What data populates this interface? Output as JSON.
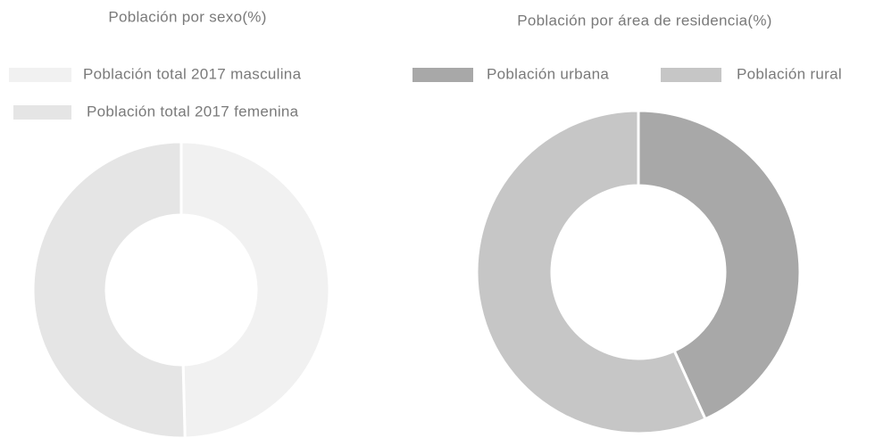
{
  "chart_data": [
    {
      "type": "donut",
      "title": "Población por sexo(%)",
      "categories": [
        "Población total 2017 masculina",
        "Población total 2017 femenina"
      ],
      "values": [
        49.6,
        50.4
      ],
      "colors": [
        "#f1f1f1",
        "#e5e5e5"
      ]
    },
    {
      "type": "donut",
      "title": "Población por área de residencia(%)",
      "categories": [
        "Población urbana",
        "Población rural"
      ],
      "values": [
        43.2,
        56.8
      ],
      "colors": [
        "#a8a8a8",
        "#c6c6c6"
      ]
    }
  ]
}
